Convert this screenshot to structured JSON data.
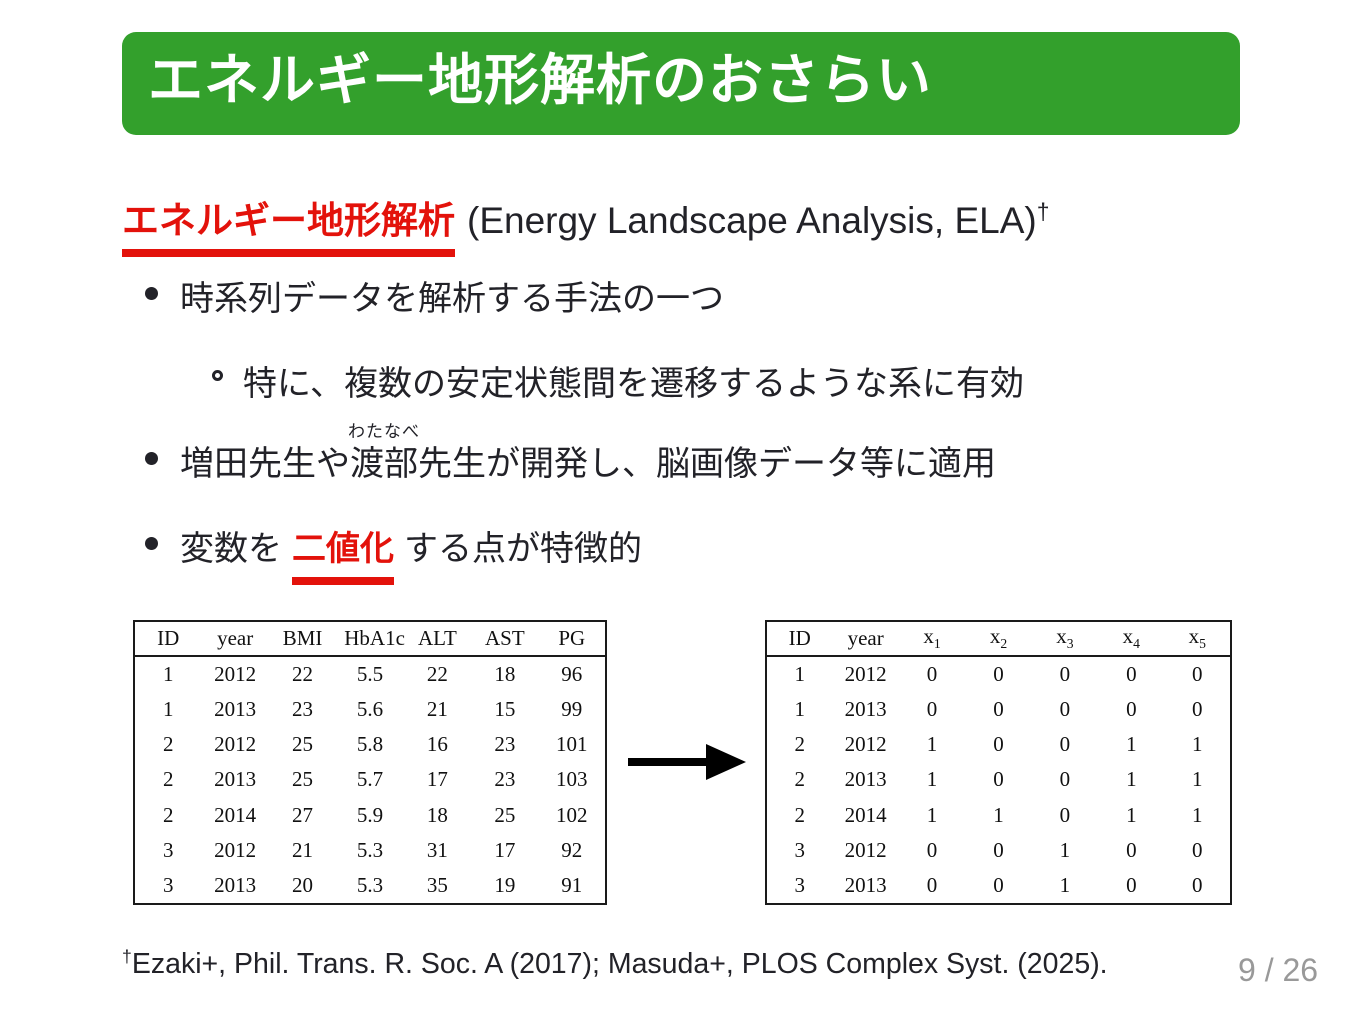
{
  "banner": {
    "title": "エネルギー地形解析のおさらい"
  },
  "heading": {
    "highlight": "エネルギー地形解析",
    "rest": "(Energy Landscape Analysis, ELA)",
    "dagger": "†"
  },
  "bullets": {
    "b1": "時系列データを解析する手法の一つ",
    "b1_sub": "特に、複数の安定状態間を遷移するような系に有効",
    "b2_pre": "増田先生や",
    "b2_ruby_base": "渡部",
    "b2_ruby_text": "わたなべ",
    "b2_post": "先生が開発し、脳画像データ等に適用",
    "b3_pre": "変数を",
    "b3_highlight": "二値化",
    "b3_post": "する点が特徴的"
  },
  "left_table": {
    "headers": [
      "ID",
      "year",
      "BMI",
      "HbA1c",
      "ALT",
      "AST",
      "PG"
    ],
    "rows": [
      [
        "1",
        "2012",
        "22",
        "5.5",
        "22",
        "18",
        "96"
      ],
      [
        "1",
        "2013",
        "23",
        "5.6",
        "21",
        "15",
        "99"
      ],
      [
        "2",
        "2012",
        "25",
        "5.8",
        "16",
        "23",
        "101"
      ],
      [
        "2",
        "2013",
        "25",
        "5.7",
        "17",
        "23",
        "103"
      ],
      [
        "2",
        "2014",
        "27",
        "5.9",
        "18",
        "25",
        "102"
      ],
      [
        "3",
        "2012",
        "21",
        "5.3",
        "31",
        "17",
        "92"
      ],
      [
        "3",
        "2013",
        "20",
        "5.3",
        "35",
        "19",
        "91"
      ]
    ]
  },
  "right_table": {
    "headers": [
      "ID",
      "year",
      "x_1",
      "x_2",
      "x_3",
      "x_4",
      "x_5"
    ],
    "rows": [
      [
        "1",
        "2012",
        "0",
        "0",
        "0",
        "0",
        "0"
      ],
      [
        "1",
        "2013",
        "0",
        "0",
        "0",
        "0",
        "0"
      ],
      [
        "2",
        "2012",
        "1",
        "0",
        "0",
        "1",
        "1"
      ],
      [
        "2",
        "2013",
        "1",
        "0",
        "0",
        "1",
        "1"
      ],
      [
        "2",
        "2014",
        "1",
        "1",
        "0",
        "1",
        "1"
      ],
      [
        "3",
        "2012",
        "0",
        "0",
        "1",
        "0",
        "0"
      ],
      [
        "3",
        "2013",
        "0",
        "0",
        "1",
        "0",
        "0"
      ]
    ]
  },
  "footnote": {
    "dagger": "†",
    "text": "Ezaki+, Phil. Trans. R. Soc. A (2017); Masuda+, PLOS Complex Syst. (2025)."
  },
  "page_number": "9 / 26",
  "colors": {
    "banner_green": "#33a02c",
    "accent_red": "#e3120b",
    "body_text": "#222228",
    "page_number_gray": "#999999",
    "table_border": "#1a1a1a"
  }
}
